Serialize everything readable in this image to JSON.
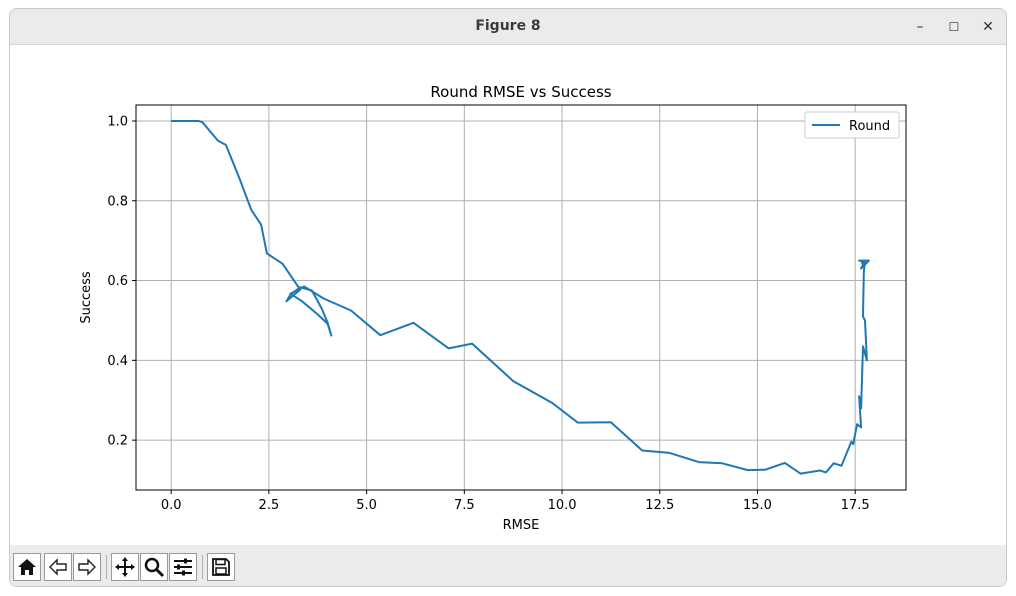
{
  "window": {
    "title": "Figure 8",
    "minimize_glyph": "–",
    "maximize_glyph": "☐",
    "close_glyph": "✕"
  },
  "toolbar": {
    "icons": [
      "home-icon",
      "back-arrow-icon",
      "forward-arrow-icon",
      "pan-icon",
      "zoom-icon",
      "configure-subplots-icon",
      "save-icon"
    ]
  },
  "chart_data": {
    "type": "line",
    "title": "Round RMSE vs Success",
    "xlabel": "RMSE",
    "ylabel": "Success",
    "xlim": [
      -0.9,
      18.8
    ],
    "ylim": [
      0.075,
      1.04
    ],
    "xticks": [
      0.0,
      2.5,
      5.0,
      7.5,
      10.0,
      12.5,
      15.0,
      17.5
    ],
    "xtick_labels": [
      "0.0",
      "2.5",
      "5.0",
      "7.5",
      "10.0",
      "12.5",
      "15.0",
      "17.5"
    ],
    "yticks": [
      0.2,
      0.4,
      0.6,
      0.8,
      1.0
    ],
    "ytick_labels": [
      "0.2",
      "0.4",
      "0.6",
      "0.8",
      "1.0"
    ],
    "grid": true,
    "legend_position": "upper-right",
    "series": [
      {
        "name": "Round",
        "color": "#1f77b4",
        "x": [
          0.0,
          0.7,
          0.8,
          1.2,
          1.4,
          1.75,
          2.05,
          2.3,
          2.45,
          2.85,
          3.3,
          3.15,
          2.95,
          3.05,
          3.3,
          3.6,
          3.85,
          4.0,
          4.1,
          4.0,
          3.75,
          3.35,
          3.05,
          3.4,
          3.9,
          4.6,
          5.35,
          6.2,
          7.1,
          7.7,
          8.75,
          9.75,
          10.4,
          11.25,
          12.05,
          12.75,
          13.5,
          14.1,
          14.75,
          15.2,
          15.7,
          16.1,
          16.6,
          16.75,
          16.95,
          17.15,
          17.4,
          17.45,
          17.55,
          17.65,
          17.6,
          17.65,
          17.7,
          17.8,
          17.75,
          17.7,
          17.72,
          17.75,
          17.7,
          17.65,
          17.8,
          17.6,
          17.85,
          17.65,
          17.75,
          17.7,
          17.72
        ],
        "y": [
          1.0,
          1.0,
          0.997,
          0.95,
          0.94,
          0.855,
          0.777,
          0.74,
          0.668,
          0.642,
          0.577,
          0.565,
          0.548,
          0.565,
          0.583,
          0.575,
          0.53,
          0.495,
          0.462,
          0.492,
          0.515,
          0.548,
          0.567,
          0.585,
          0.555,
          0.525,
          0.463,
          0.494,
          0.43,
          0.442,
          0.348,
          0.293,
          0.244,
          0.245,
          0.174,
          0.168,
          0.145,
          0.142,
          0.125,
          0.126,
          0.143,
          0.116,
          0.124,
          0.119,
          0.142,
          0.136,
          0.196,
          0.19,
          0.24,
          0.232,
          0.31,
          0.28,
          0.435,
          0.4,
          0.5,
          0.51,
          0.62,
          0.65,
          0.64,
          0.65,
          0.65,
          0.65,
          0.65,
          0.63,
          0.65,
          0.64,
          0.65
        ]
      }
    ]
  }
}
